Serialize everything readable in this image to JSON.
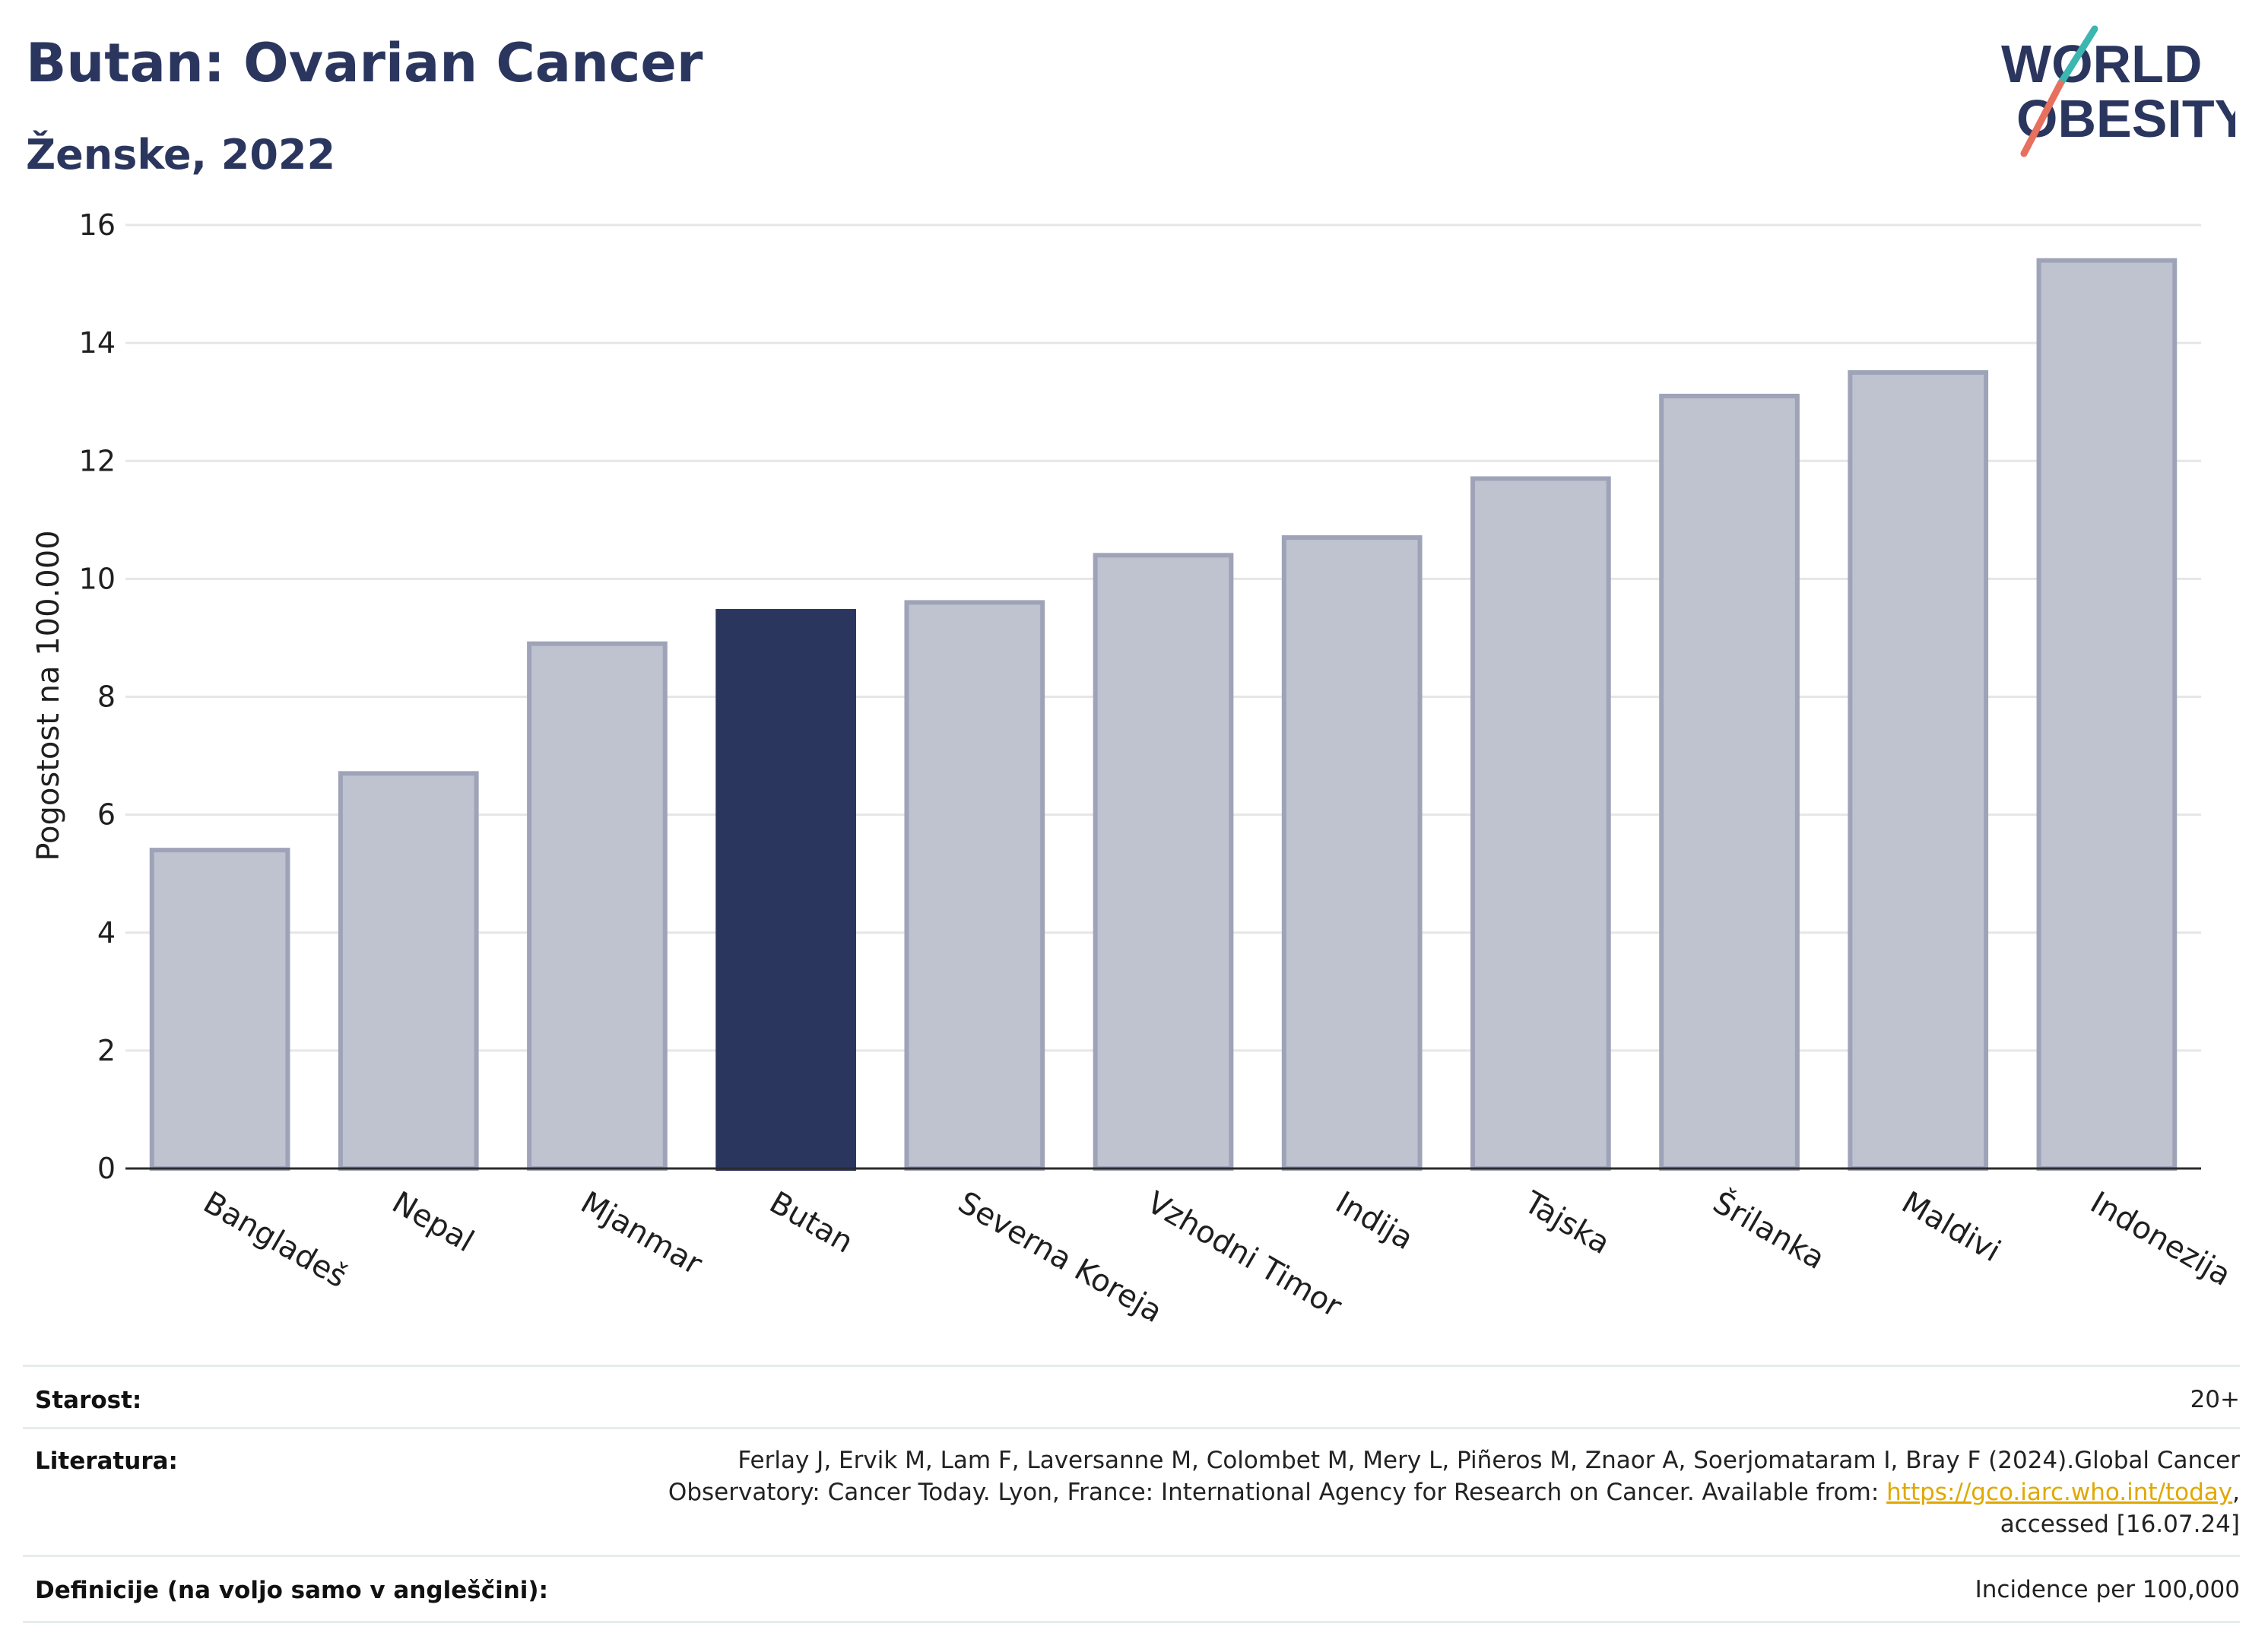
{
  "header": {
    "title": "Butan: Ovarian Cancer",
    "subtitle": "Ženske, 2022",
    "logo_line1": "WORLD",
    "logo_line2": "OBESITY"
  },
  "colors": {
    "highlight": "#2b365f",
    "bar": "#bfc2cf",
    "bar_border": "#9ea3b8",
    "grid": "#e6e6e6",
    "title": "#2b365f",
    "logo_teal": "#3bb6b0",
    "logo_red": "#e8705e"
  },
  "chart_data": {
    "type": "bar",
    "title": "Butan: Ovarian Cancer",
    "subtitle": "Ženske, 2022",
    "xlabel": "",
    "ylabel": "Pogostost na 100.000",
    "ylim": [
      0,
      16
    ],
    "yticks": [
      "0",
      "2",
      "4",
      "6",
      "8",
      "10",
      "12",
      "14",
      "16"
    ],
    "grid": true,
    "highlight": "Butan",
    "categories": [
      "Bangladeš",
      "Nepal",
      "Mjanmar",
      "Butan",
      "Severna Koreja",
      "Vzhodni Timor",
      "Indija",
      "Tajska",
      "Šrilanka",
      "Maldivi",
      "Indonezija"
    ],
    "values": [
      5.4,
      6.7,
      8.9,
      9.45,
      9.6,
      10.4,
      10.7,
      11.7,
      13.1,
      13.5,
      15.4
    ]
  },
  "footer": {
    "age_label": "Starost:",
    "age_value": "20+",
    "lit_label": "Literatura:",
    "lit_line1": "Ferlay J, Ervik M, Lam F, Laversanne M, Colombet M, Mery L, Piñeros M, Znaor A, Soerjomataram I, Bray F (2024).Global Cancer",
    "lit_line2a": "Observatory: Cancer Today. Lyon, France: International Agency for Research on Cancer. Available from: ",
    "lit_link": "https://gco.iarc.who.int/today",
    "lit_line2b": ",",
    "lit_line3": "accessed [16.07.24]",
    "def_label": "Definicije (na voljo samo v angleščini):",
    "def_value": "Incidence per 100,000"
  }
}
